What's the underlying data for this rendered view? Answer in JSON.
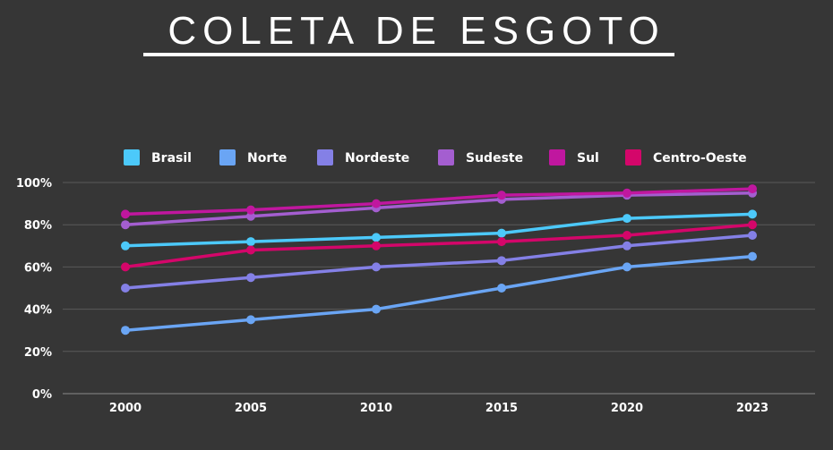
{
  "title": "COLETA DE ESGOTO",
  "chart_data": {
    "type": "line",
    "title": "COLETA DE ESGOTO",
    "xlabel": "",
    "ylabel": "",
    "x": [
      "2000",
      "2005",
      "2010",
      "2015",
      "2020",
      "2023"
    ],
    "ylim": [
      0,
      100
    ],
    "y_ticks": [
      "0%",
      "20%",
      "40%",
      "60%",
      "80%",
      "100%"
    ],
    "grid": true,
    "legend_position": "top",
    "series": [
      {
        "name": "Brasil",
        "color": "#4cc9fa",
        "values": [
          70,
          72,
          74,
          76,
          83,
          85
        ]
      },
      {
        "name": "Norte",
        "color": "#6aa5f4",
        "values": [
          30,
          35,
          40,
          50,
          60,
          65
        ]
      },
      {
        "name": "Nordeste",
        "color": "#8480e6",
        "values": [
          50,
          55,
          60,
          63,
          70,
          75
        ]
      },
      {
        "name": "Sudeste",
        "color": "#a45ed0",
        "values": [
          80,
          84,
          88,
          92,
          94,
          95
        ]
      },
      {
        "name": "Sul",
        "color": "#c0179f",
        "values": [
          85,
          87,
          90,
          94,
          95,
          97
        ]
      },
      {
        "name": "Centro-Oeste",
        "color": "#d4066a",
        "values": [
          60,
          68,
          70,
          72,
          75,
          80
        ]
      }
    ]
  }
}
